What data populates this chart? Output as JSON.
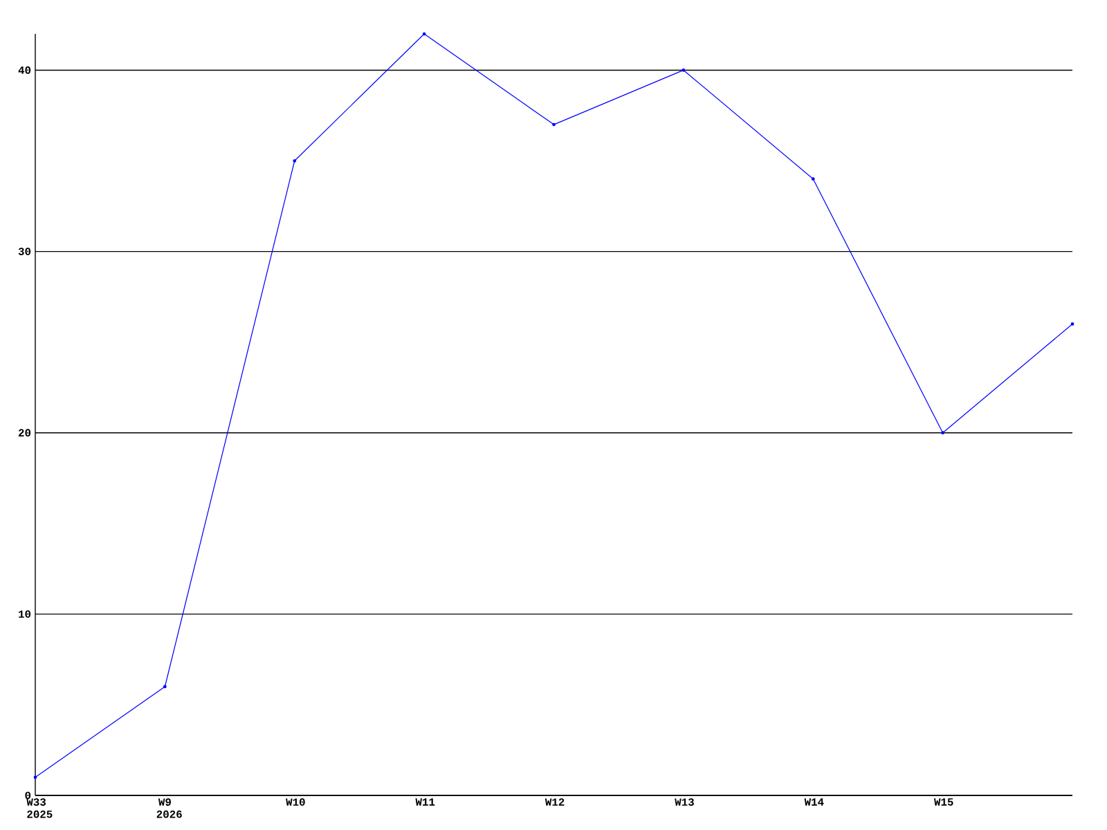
{
  "chart_data": {
    "type": "line",
    "categories": [
      "W33 2025",
      "W9 2026",
      "W10",
      "W11",
      "W12",
      "W13",
      "W14",
      "W15",
      null
    ],
    "values": [
      1,
      6,
      35,
      42,
      37,
      40,
      34,
      20,
      26
    ],
    "color": "#0000ff",
    "marker": "circle",
    "line_style": "solid",
    "ylim": [
      0,
      42
    ],
    "yticks": [
      0,
      10,
      20,
      30,
      40
    ],
    "grid": "y"
  }
}
